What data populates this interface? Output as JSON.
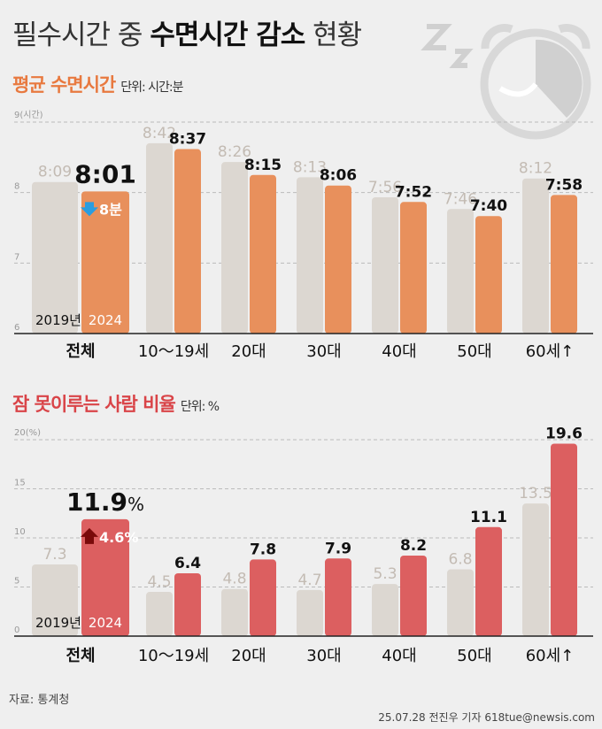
{
  "title": {
    "normal": "필수시간 중",
    "bold": "수면시간 감소",
    "end": "현황"
  },
  "colors": {
    "grey_bar": "#dcd7d1",
    "orange": "#e8905c",
    "red": "#dc5f60",
    "orange_title": "#e8793f",
    "red_title": "#d94448",
    "grey_label": "#c3bbb3",
    "down_arrow": "#2a9de0",
    "up_arrow": "#7a0a0a"
  },
  "icons": [
    "zzz-icon",
    "alarm-clock-icon",
    "down-arrow-icon",
    "up-arrow-icon"
  ],
  "chart_data": [
    {
      "type": "bar",
      "title": "평균 수면시간",
      "unit_label": "단위: 시간:분",
      "y_top_label": "9(시간)",
      "yticks": [
        "6",
        "7",
        "8"
      ],
      "ylim": [
        6,
        9
      ],
      "grid": true,
      "categories": [
        "전체",
        "10～19세",
        "20대",
        "30대",
        "40대",
        "50대",
        "60세↑"
      ],
      "series": [
        {
          "name": "2019년",
          "values": [
            "8:09",
            "8:42",
            "8:26",
            "8:13",
            "7:56",
            "7:46",
            "8:12"
          ]
        },
        {
          "name": "2024",
          "values": [
            "8:01",
            "8:37",
            "8:15",
            "8:06",
            "7:52",
            "7:40",
            "7:58"
          ]
        }
      ],
      "annotation": "8분",
      "total_2024_label": "8:01"
    },
    {
      "type": "bar",
      "title": "잠 못이루는 사람 비율",
      "unit_label": "단위: %",
      "y_top_label": "20(%)",
      "yticks": [
        "0",
        "5",
        "10",
        "15"
      ],
      "ylim": [
        0,
        20
      ],
      "grid": true,
      "categories": [
        "전체",
        "10～19세",
        "20대",
        "30대",
        "40대",
        "50대",
        "60세↑"
      ],
      "series": [
        {
          "name": "2019년",
          "values": [
            7.3,
            4.5,
            4.8,
            4.7,
            5.3,
            6.8,
            13.5
          ]
        },
        {
          "name": "2024",
          "values": [
            11.9,
            6.4,
            7.8,
            7.9,
            8.2,
            11.1,
            19.6
          ]
        }
      ],
      "annotation": "4.6%",
      "total_2024_label": "11.9",
      "total_suffix": "%"
    }
  ],
  "source": "자료: 통계청",
  "credit": "25.07.28 전진우 기자 618tue@newsis.com"
}
